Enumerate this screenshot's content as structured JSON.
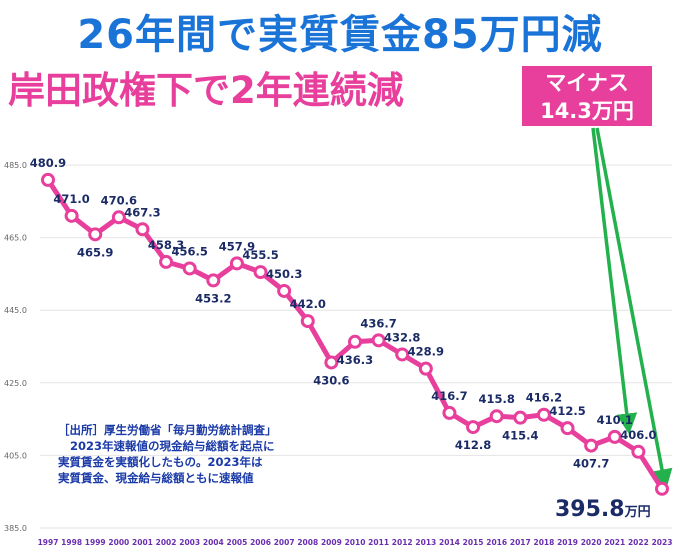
{
  "header": {
    "title": "26年間で実質賃金85万円減",
    "subtitle": "岸田政権下で2年連続減",
    "callout_line1": "マイナス",
    "callout_line2": "14.3万円"
  },
  "source_note": {
    "line1": "［出所］厚生労働省「毎月勤労統計調査」",
    "line2": "2023年速報値の現金給与総額を起点に",
    "line3": "実質賃金を実額化したもの。2023年は",
    "line4": "実質賃金、現金給与総額ともに速報値"
  },
  "final_label": {
    "value": "395.8",
    "unit": "万円"
  },
  "colors": {
    "line": "#e83e9c",
    "title": "#1a73d6",
    "label": "#1b2b66",
    "tick_x": "#6a2fb0",
    "tick_y": "#666666",
    "arrow": "#22b14c"
  },
  "chart_data": {
    "type": "line",
    "x": [
      "1997",
      "1998",
      "1999",
      "2000",
      "2001",
      "2002",
      "2003",
      "2004",
      "2005",
      "2006",
      "2007",
      "2008",
      "2009",
      "2010",
      "2011",
      "2012",
      "2013",
      "2014",
      "2015",
      "2016",
      "2017",
      "2018",
      "2019",
      "2020",
      "2021",
      "2022",
      "2023"
    ],
    "series": [
      {
        "values": [
          480.9,
          471.0,
          465.9,
          470.6,
          467.3,
          458.3,
          456.5,
          453.2,
          457.9,
          455.5,
          450.3,
          442.0,
          430.6,
          436.3,
          436.7,
          432.8,
          428.9,
          416.7,
          412.8,
          415.8,
          415.4,
          416.2,
          412.5,
          407.7,
          410.1,
          406.0,
          395.8
        ]
      }
    ],
    "data_labels": [
      "480.9",
      "471.0",
      "465.9",
      "470.6",
      "467.3",
      "458.3",
      "456.5",
      "453.2",
      "457.9",
      "455.5",
      "450.3",
      "442.0",
      "430.6",
      "436.3",
      "436.7",
      "432.8",
      "428.9",
      "416.7",
      "412.8",
      "415.8",
      "415.4",
      "416.2",
      "412.5",
      "407.7",
      "410.1",
      "406.0",
      ""
    ],
    "y_ticks": [
      "385.0",
      "405.0",
      "425.0",
      "445.0",
      "465.0",
      "485.0"
    ],
    "y_tick_values": [
      385,
      405,
      425,
      445,
      465,
      485
    ],
    "ylim": [
      385,
      485
    ],
    "grid": true,
    "markers": "hollow-circle"
  }
}
